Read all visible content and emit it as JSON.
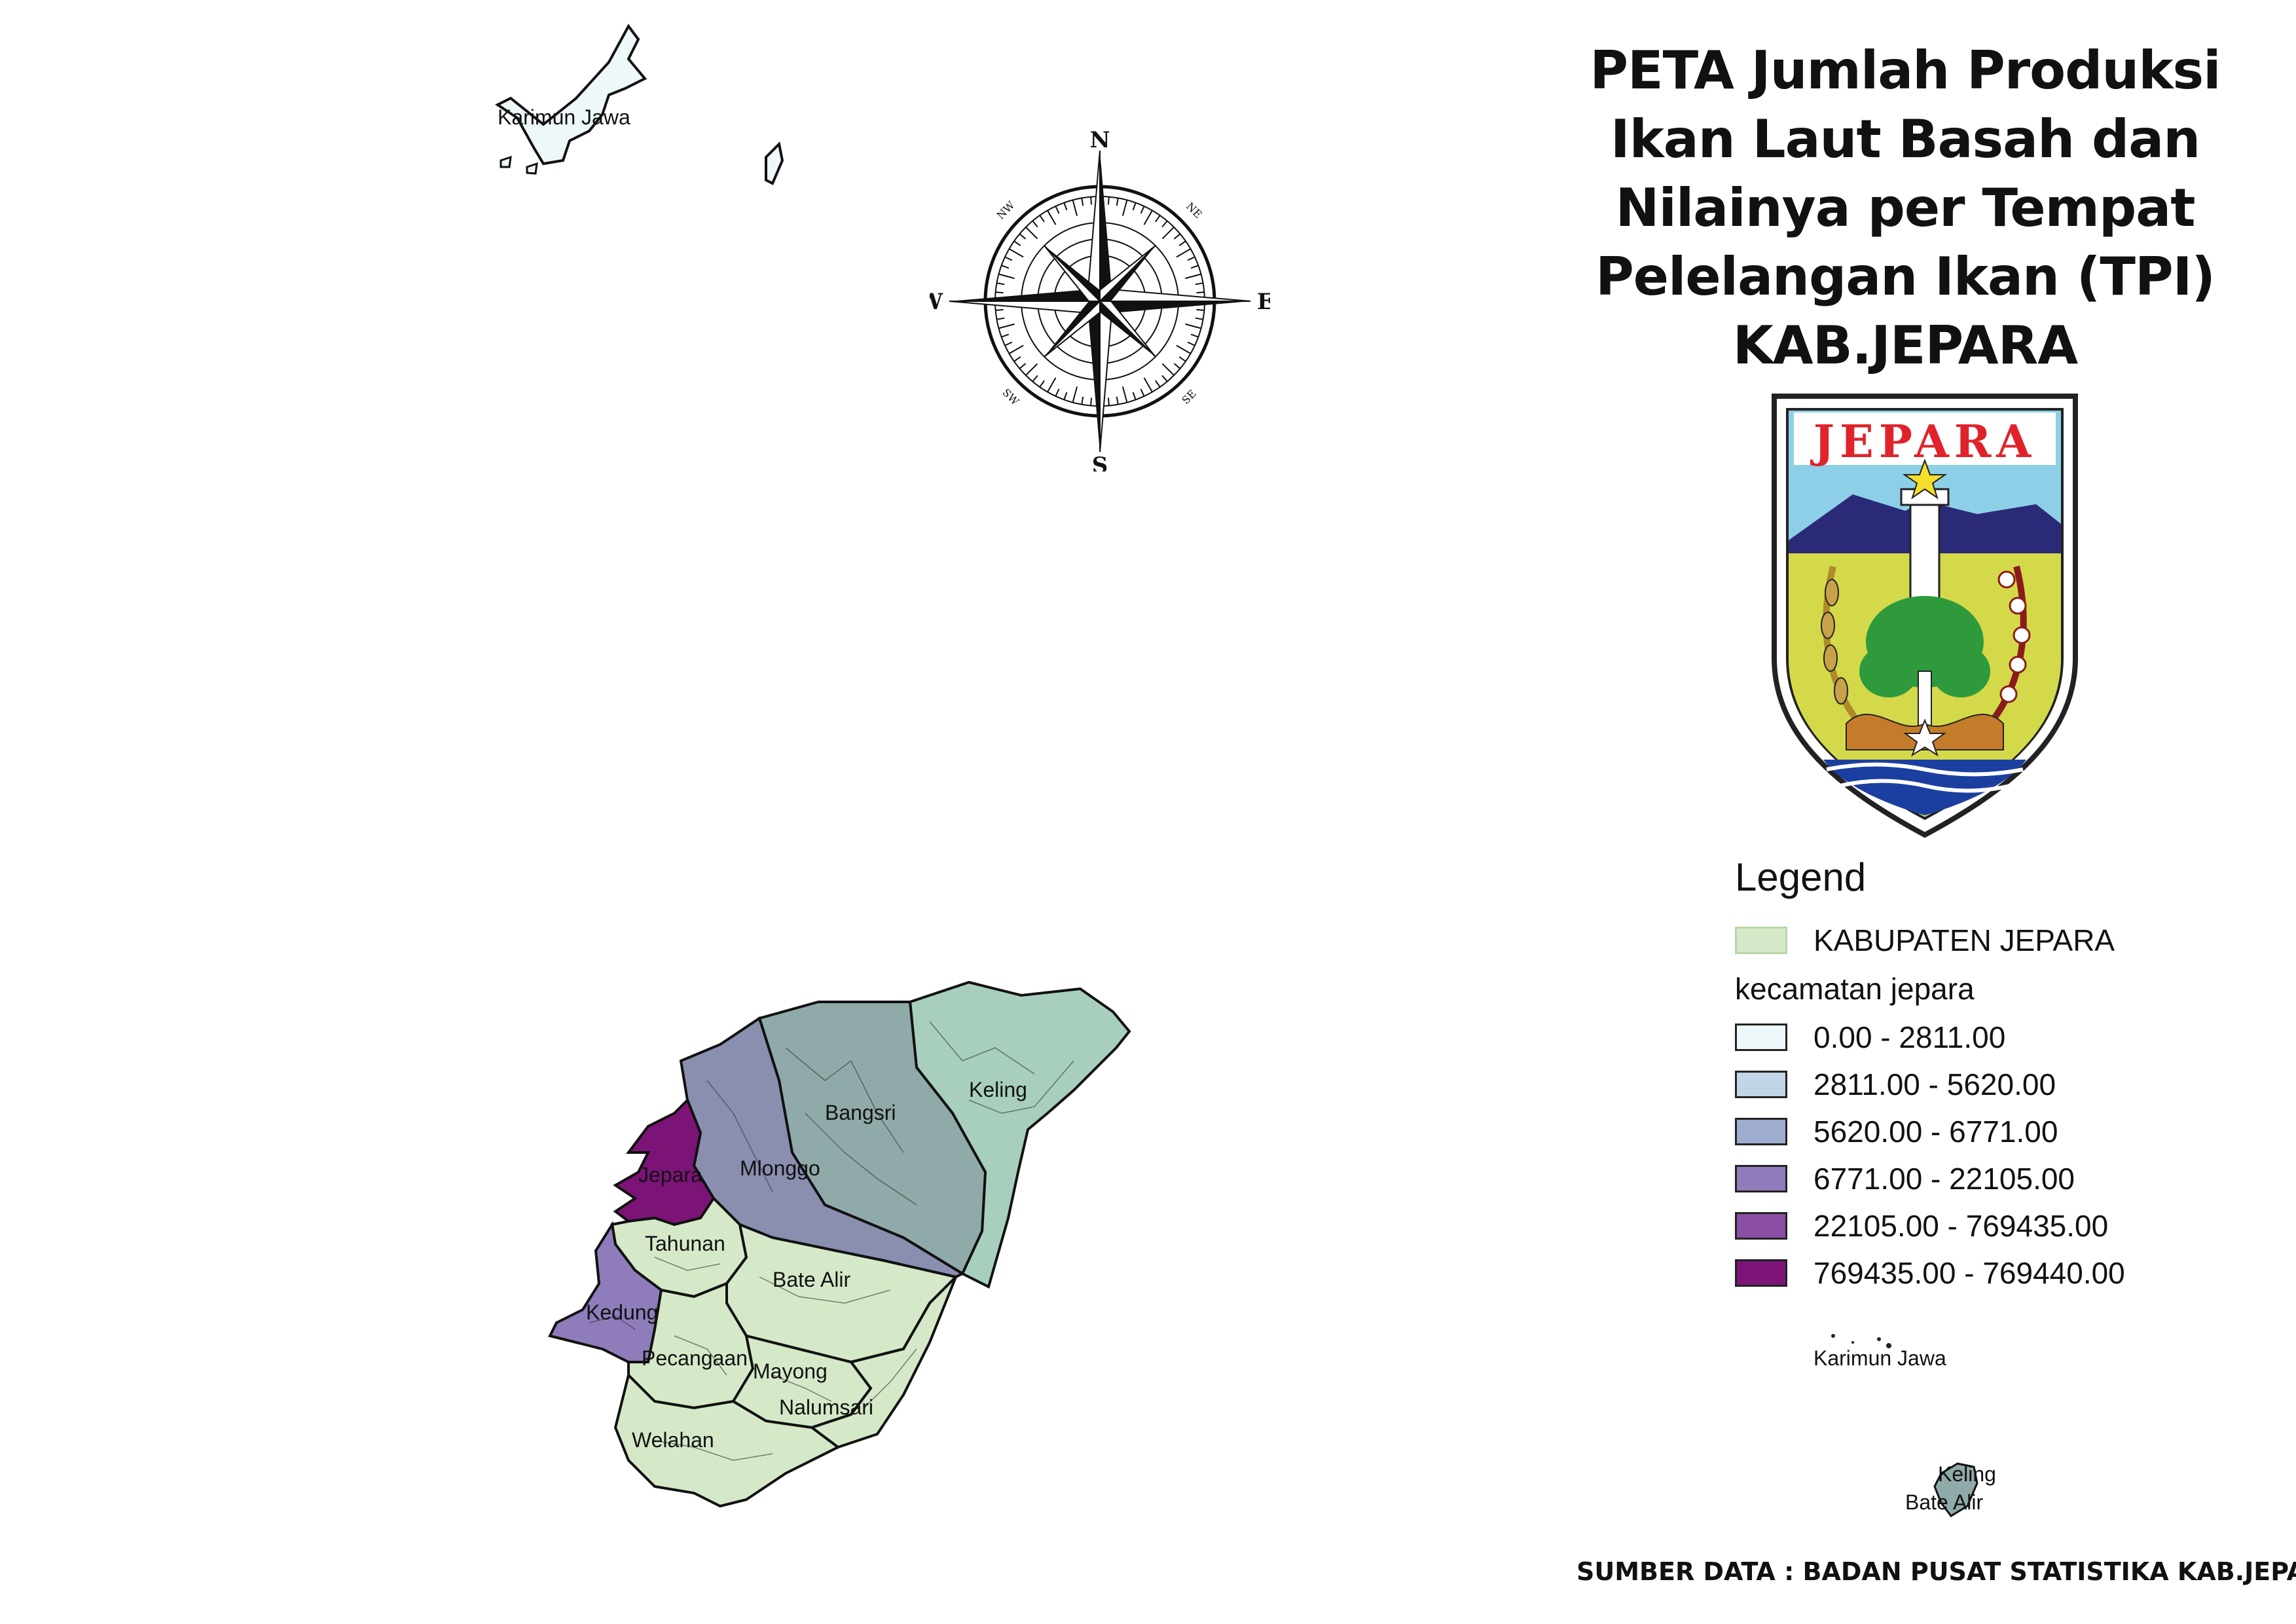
{
  "title_lines": [
    "PETA Jumlah Produksi",
    "Ikan Laut Basah dan",
    "Nilainya per Tempat",
    "Pelelangan Ikan (TPI)",
    "KAB.JEPARA"
  ],
  "logo": {
    "text": "JEPARA",
    "colors": {
      "sky": "#8ecfe8",
      "mountain": "#2b2a78",
      "field": "#d4d94a",
      "tree": "#2e9a3c",
      "red": "#e0232b"
    }
  },
  "compass": {
    "north": "N",
    "south": "S",
    "east": "E",
    "west": "W",
    "nw": "NW",
    "ne": "NE",
    "sw": "SW",
    "se": "SE"
  },
  "map_labels": {
    "karimun_jawa": "Karimun Jawa",
    "keling": "Keling",
    "bangsri": "Bangsri",
    "mlonggo": "Mlonggo",
    "jepara": "Jepara",
    "tahunan": "Tahunan",
    "bate_alir": "Bate Alir",
    "kedung": "Kedung",
    "pecangaan": "Pecangaan",
    "mayong": "Mayong",
    "nalumsari": "Nalumsari",
    "welahan": "Welahan"
  },
  "legend": {
    "title": "Legend",
    "layer_kabupaten": "KABUPATEN JEPARA",
    "layer_kecamatan": "kecamatan jepara",
    "kabupaten_color": "#d5e9c8",
    "classes": [
      {
        "label": "0.00 - 2811.00",
        "color": "#eef8fa"
      },
      {
        "label": "2811.00 - 5620.00",
        "color": "#c2d5e8"
      },
      {
        "label": "5620.00 - 6771.00",
        "color": "#9fadd0"
      },
      {
        "label": "6771.00 - 22105.00",
        "color": "#8f7dbb"
      },
      {
        "label": "22105.00 - 769435.00",
        "color": "#8a4fa4"
      },
      {
        "label": "769435.00 - 769440.00",
        "color": "#7c1478"
      }
    ]
  },
  "inset_labels": {
    "karimun_jawa": "Karimun Jawa",
    "keling": "Keling",
    "bate_alir": "Bate Alir"
  },
  "source": "SUMBER DATA : BADAN PUSAT STATISTIKA KAB.JEPARA"
}
